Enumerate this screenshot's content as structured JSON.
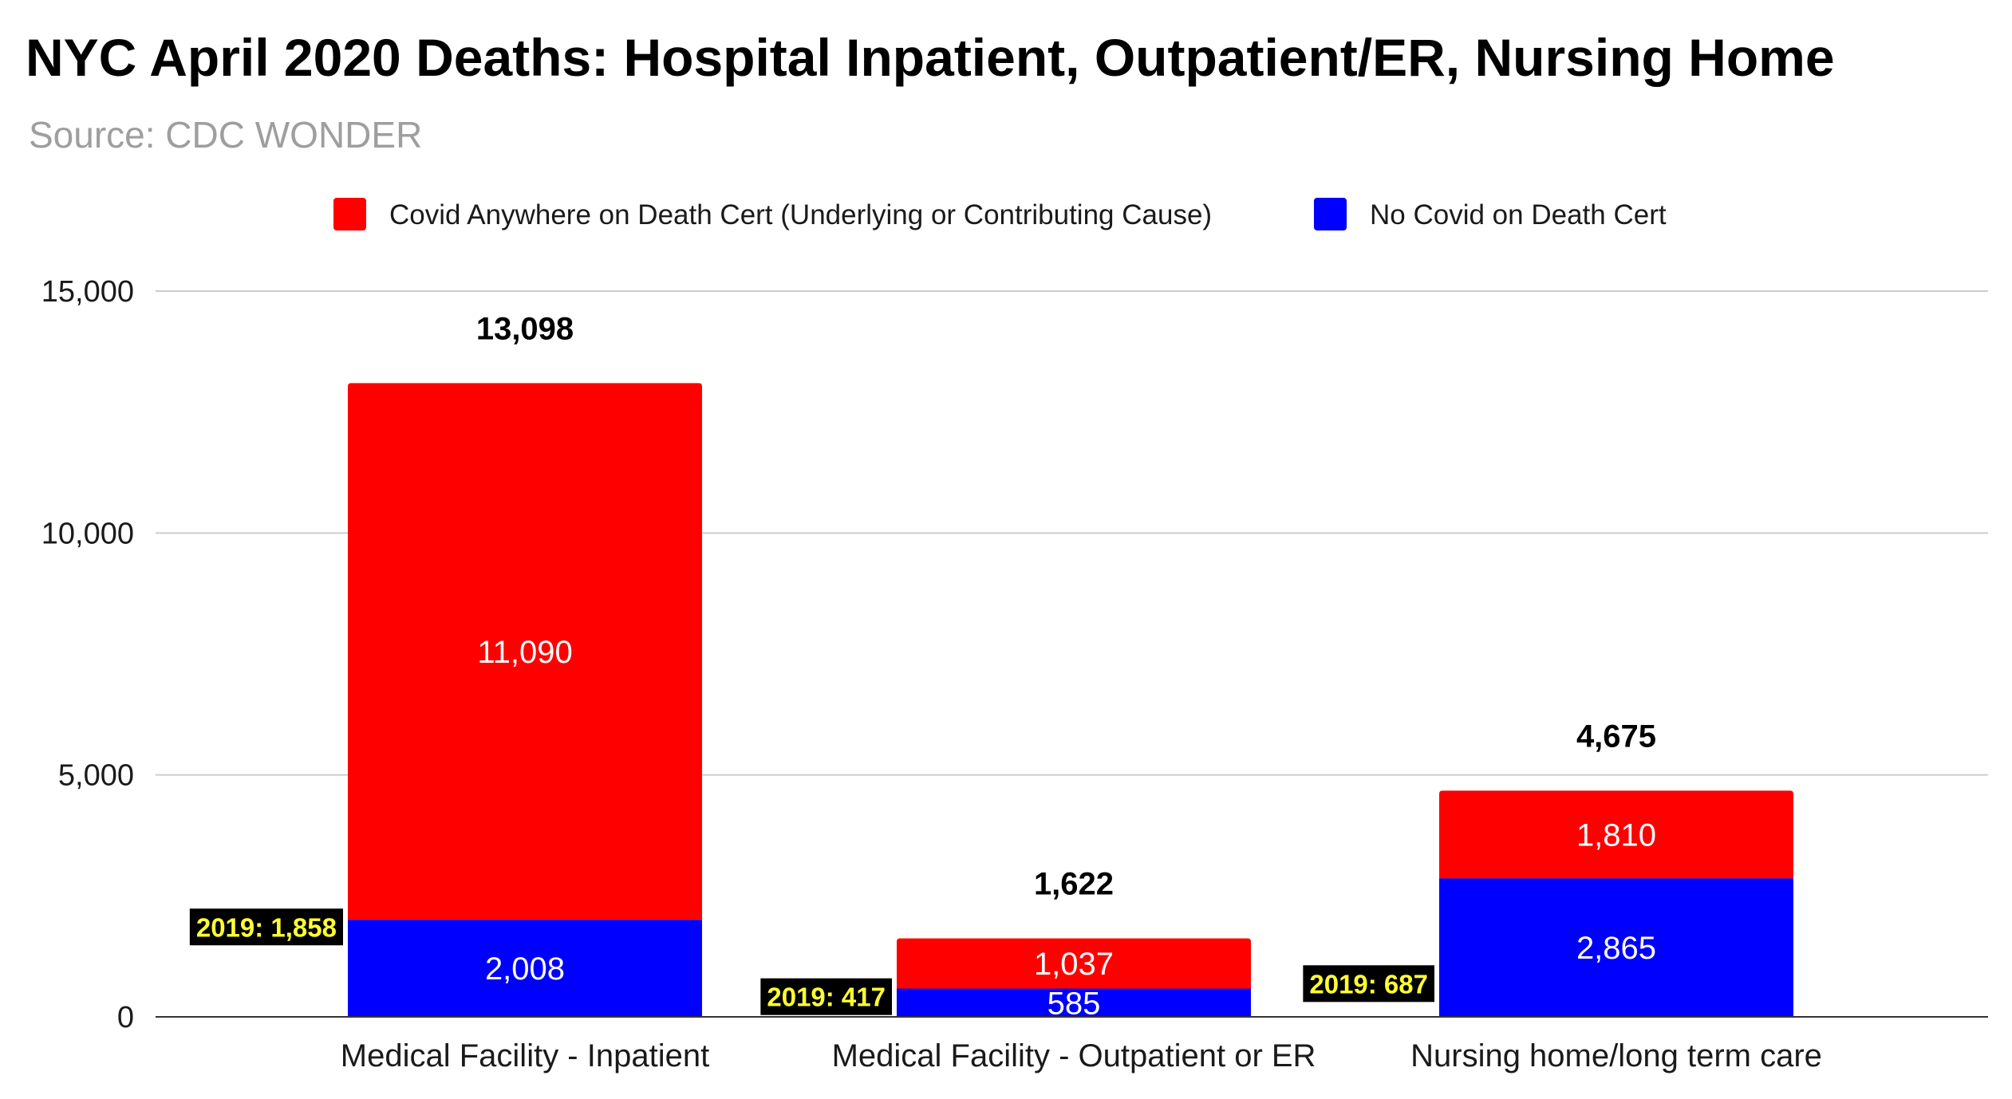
{
  "chart_data": {
    "type": "bar",
    "stacked": true,
    "title": "NYC April 2020 Deaths: Hospital Inpatient, Outpatient/ER, Nursing Home",
    "subtitle": "Source: CDC WONDER",
    "categories": [
      "Medical Facility - Inpatient",
      "Medical Facility - Outpatient or ER",
      "Nursing home/long term care"
    ],
    "series": [
      {
        "name": "No Covid on Death Cert",
        "color": "#0000ff",
        "values": [
          2008,
          585,
          2865
        ],
        "labels": [
          "2,008",
          "585",
          "2,865"
        ]
      },
      {
        "name": "Covid Anywhere on Death Cert (Underlying or Contributing Cause)",
        "color": "#ff0000",
        "values": [
          11090,
          1037,
          1810
        ],
        "labels": [
          "11,090",
          "1,037",
          "1,810"
        ]
      }
    ],
    "legend_order": [
      1,
      0
    ],
    "totals": [
      "13,098",
      "1,622",
      "4,675"
    ],
    "annotations": [
      "2019: 1,858",
      "2019: 417",
      "2019: 687"
    ],
    "annotation_values": [
      1858,
      417,
      687
    ],
    "annotation_style": {
      "background": "#000000",
      "text_color": "#ffff33"
    },
    "yticks": [
      0,
      5000,
      10000,
      15000
    ],
    "ytick_labels": [
      "0",
      "5,000",
      "10,000",
      "15,000"
    ],
    "ylim": [
      0,
      15000
    ],
    "grid": true,
    "legend_position": "top"
  }
}
